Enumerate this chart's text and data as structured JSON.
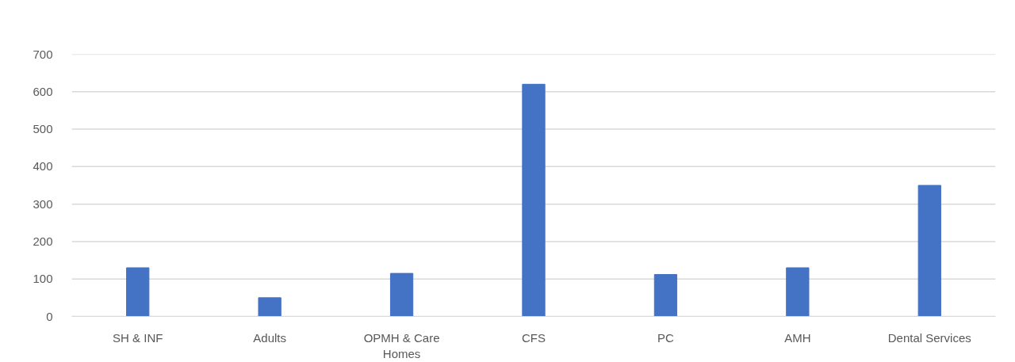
{
  "chart_data": {
    "type": "bar",
    "categories": [
      "SH & INF",
      "Adults",
      "OPMH & Care Homes",
      "CFS",
      "PC",
      "AMH",
      "Dental Services"
    ],
    "values": [
      130,
      50,
      115,
      620,
      112,
      130,
      350
    ],
    "color": "#4472c4",
    "ylim": [
      0,
      700
    ],
    "yticks": [
      0,
      100,
      200,
      300,
      400,
      500,
      600,
      700
    ],
    "grid": "y"
  }
}
